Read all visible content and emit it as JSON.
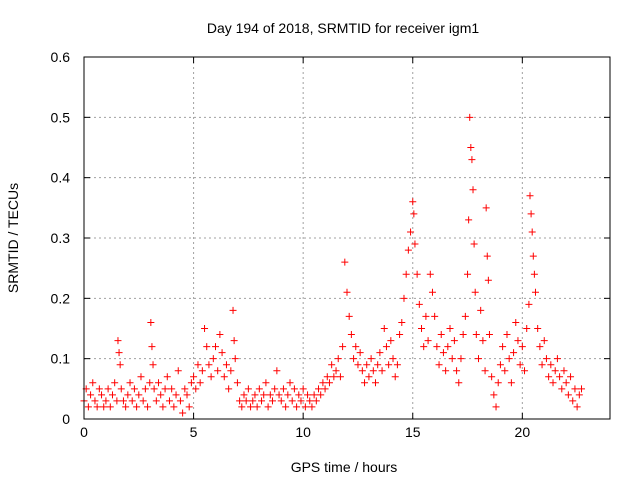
{
  "chart_data": {
    "type": "scatter",
    "title": "Day 194 of 2018, SRMTID for receiver igm1",
    "xlabel": "GPS time / hours",
    "ylabel": "SRMTID / TECUs",
    "xlim": [
      0,
      24
    ],
    "ylim": [
      0,
      0.6
    ],
    "xticks": [
      0,
      5,
      10,
      15,
      20
    ],
    "xtick_labels": [
      "0",
      "5",
      "10",
      "15",
      "20"
    ],
    "yticks": [
      0,
      0.1,
      0.2,
      0.3,
      0.4,
      0.5,
      0.6
    ],
    "ytick_labels": [
      "0",
      "0.1",
      "0.2",
      "0.3",
      "0.4",
      "0.5",
      "0.6"
    ],
    "grid": true,
    "marker": "+",
    "series": [
      {
        "name": "igm1",
        "color": "#ff0000",
        "points": [
          [
            0.0,
            0.03
          ],
          [
            0.1,
            0.05
          ],
          [
            0.2,
            0.02
          ],
          [
            0.3,
            0.04
          ],
          [
            0.4,
            0.06
          ],
          [
            0.5,
            0.03
          ],
          [
            0.6,
            0.02
          ],
          [
            0.7,
            0.05
          ],
          [
            0.8,
            0.04
          ],
          [
            0.9,
            0.02
          ],
          [
            1.0,
            0.03
          ],
          [
            1.1,
            0.05
          ],
          [
            1.2,
            0.02
          ],
          [
            1.3,
            0.04
          ],
          [
            1.4,
            0.06
          ],
          [
            1.5,
            0.03
          ],
          [
            1.55,
            0.13
          ],
          [
            1.6,
            0.11
          ],
          [
            1.65,
            0.09
          ],
          [
            1.7,
            0.05
          ],
          [
            1.8,
            0.03
          ],
          [
            1.9,
            0.02
          ],
          [
            2.0,
            0.04
          ],
          [
            2.1,
            0.06
          ],
          [
            2.2,
            0.03
          ],
          [
            2.3,
            0.05
          ],
          [
            2.4,
            0.02
          ],
          [
            2.5,
            0.04
          ],
          [
            2.6,
            0.07
          ],
          [
            2.7,
            0.03
          ],
          [
            2.8,
            0.05
          ],
          [
            2.9,
            0.02
          ],
          [
            3.0,
            0.06
          ],
          [
            3.05,
            0.16
          ],
          [
            3.1,
            0.12
          ],
          [
            3.15,
            0.09
          ],
          [
            3.2,
            0.05
          ],
          [
            3.3,
            0.03
          ],
          [
            3.4,
            0.06
          ],
          [
            3.5,
            0.04
          ],
          [
            3.6,
            0.02
          ],
          [
            3.7,
            0.05
          ],
          [
            3.8,
            0.07
          ],
          [
            3.9,
            0.03
          ],
          [
            4.0,
            0.05
          ],
          [
            4.1,
            0.02
          ],
          [
            4.2,
            0.04
          ],
          [
            4.3,
            0.08
          ],
          [
            4.4,
            0.03
          ],
          [
            4.5,
            0.01
          ],
          [
            4.6,
            0.05
          ],
          [
            4.7,
            0.04
          ],
          [
            4.8,
            0.02
          ],
          [
            4.9,
            0.06
          ],
          [
            5.0,
            0.07
          ],
          [
            5.1,
            0.05
          ],
          [
            5.2,
            0.09
          ],
          [
            5.3,
            0.06
          ],
          [
            5.4,
            0.08
          ],
          [
            5.5,
            0.15
          ],
          [
            5.6,
            0.12
          ],
          [
            5.7,
            0.09
          ],
          [
            5.8,
            0.07
          ],
          [
            5.9,
            0.1
          ],
          [
            6.0,
            0.12
          ],
          [
            6.1,
            0.08
          ],
          [
            6.2,
            0.14
          ],
          [
            6.3,
            0.11
          ],
          [
            6.4,
            0.07
          ],
          [
            6.5,
            0.09
          ],
          [
            6.6,
            0.05
          ],
          [
            6.7,
            0.08
          ],
          [
            6.8,
            0.18
          ],
          [
            6.85,
            0.13
          ],
          [
            6.9,
            0.1
          ],
          [
            7.0,
            0.06
          ],
          [
            7.1,
            0.03
          ],
          [
            7.2,
            0.02
          ],
          [
            7.3,
            0.04
          ],
          [
            7.4,
            0.03
          ],
          [
            7.5,
            0.05
          ],
          [
            7.6,
            0.02
          ],
          [
            7.7,
            0.03
          ],
          [
            7.8,
            0.04
          ],
          [
            7.9,
            0.02
          ],
          [
            8.0,
            0.05
          ],
          [
            8.1,
            0.03
          ],
          [
            8.2,
            0.04
          ],
          [
            8.3,
            0.06
          ],
          [
            8.4,
            0.02
          ],
          [
            8.5,
            0.04
          ],
          [
            8.6,
            0.03
          ],
          [
            8.7,
            0.05
          ],
          [
            8.8,
            0.08
          ],
          [
            8.9,
            0.04
          ],
          [
            9.0,
            0.03
          ],
          [
            9.1,
            0.05
          ],
          [
            9.2,
            0.02
          ],
          [
            9.3,
            0.04
          ],
          [
            9.4,
            0.06
          ],
          [
            9.5,
            0.03
          ],
          [
            9.6,
            0.05
          ],
          [
            9.7,
            0.02
          ],
          [
            9.8,
            0.04
          ],
          [
            9.9,
            0.03
          ],
          [
            10.0,
            0.05
          ],
          [
            10.1,
            0.02
          ],
          [
            10.2,
            0.04
          ],
          [
            10.3,
            0.03
          ],
          [
            10.4,
            0.02
          ],
          [
            10.5,
            0.04
          ],
          [
            10.6,
            0.03
          ],
          [
            10.7,
            0.05
          ],
          [
            10.8,
            0.04
          ],
          [
            10.9,
            0.06
          ],
          [
            11.0,
            0.05
          ],
          [
            11.1,
            0.07
          ],
          [
            11.2,
            0.06
          ],
          [
            11.3,
            0.09
          ],
          [
            11.4,
            0.07
          ],
          [
            11.5,
            0.08
          ],
          [
            11.6,
            0.1
          ],
          [
            11.7,
            0.07
          ],
          [
            11.8,
            0.12
          ],
          [
            11.9,
            0.26
          ],
          [
            12.0,
            0.21
          ],
          [
            12.1,
            0.17
          ],
          [
            12.2,
            0.14
          ],
          [
            12.3,
            0.1
          ],
          [
            12.4,
            0.12
          ],
          [
            12.5,
            0.09
          ],
          [
            12.6,
            0.11
          ],
          [
            12.7,
            0.08
          ],
          [
            12.8,
            0.06
          ],
          [
            12.9,
            0.09
          ],
          [
            13.0,
            0.07
          ],
          [
            13.1,
            0.1
          ],
          [
            13.2,
            0.08
          ],
          [
            13.3,
            0.06
          ],
          [
            13.4,
            0.09
          ],
          [
            13.5,
            0.11
          ],
          [
            13.6,
            0.08
          ],
          [
            13.7,
            0.15
          ],
          [
            13.8,
            0.12
          ],
          [
            13.9,
            0.09
          ],
          [
            14.0,
            0.13
          ],
          [
            14.1,
            0.1
          ],
          [
            14.2,
            0.07
          ],
          [
            14.3,
            0.09
          ],
          [
            14.4,
            0.14
          ],
          [
            14.5,
            0.16
          ],
          [
            14.6,
            0.2
          ],
          [
            14.7,
            0.24
          ],
          [
            14.8,
            0.28
          ],
          [
            14.9,
            0.31
          ],
          [
            15.0,
            0.36
          ],
          [
            15.05,
            0.34
          ],
          [
            15.1,
            0.29
          ],
          [
            15.2,
            0.24
          ],
          [
            15.3,
            0.19
          ],
          [
            15.4,
            0.15
          ],
          [
            15.5,
            0.12
          ],
          [
            15.6,
            0.17
          ],
          [
            15.7,
            0.13
          ],
          [
            15.8,
            0.24
          ],
          [
            15.9,
            0.21
          ],
          [
            16.0,
            0.17
          ],
          [
            16.1,
            0.12
          ],
          [
            16.2,
            0.09
          ],
          [
            16.3,
            0.14
          ],
          [
            16.4,
            0.11
          ],
          [
            16.5,
            0.08
          ],
          [
            16.6,
            0.12
          ],
          [
            16.7,
            0.15
          ],
          [
            16.8,
            0.1
          ],
          [
            16.9,
            0.13
          ],
          [
            17.0,
            0.08
          ],
          [
            17.1,
            0.06
          ],
          [
            17.2,
            0.1
          ],
          [
            17.3,
            0.14
          ],
          [
            17.4,
            0.17
          ],
          [
            17.5,
            0.24
          ],
          [
            17.55,
            0.33
          ],
          [
            17.6,
            0.5
          ],
          [
            17.65,
            0.45
          ],
          [
            17.7,
            0.43
          ],
          [
            17.75,
            0.38
          ],
          [
            17.8,
            0.29
          ],
          [
            17.85,
            0.21
          ],
          [
            17.9,
            0.14
          ],
          [
            18.0,
            0.1
          ],
          [
            18.1,
            0.18
          ],
          [
            18.2,
            0.13
          ],
          [
            18.3,
            0.08
          ],
          [
            18.35,
            0.35
          ],
          [
            18.4,
            0.27
          ],
          [
            18.45,
            0.23
          ],
          [
            18.5,
            0.14
          ],
          [
            18.6,
            0.07
          ],
          [
            18.7,
            0.04
          ],
          [
            18.8,
            0.02
          ],
          [
            18.9,
            0.06
          ],
          [
            19.0,
            0.09
          ],
          [
            19.1,
            0.12
          ],
          [
            19.2,
            0.08
          ],
          [
            19.3,
            0.14
          ],
          [
            19.4,
            0.1
          ],
          [
            19.5,
            0.06
          ],
          [
            19.6,
            0.11
          ],
          [
            19.7,
            0.16
          ],
          [
            19.8,
            0.13
          ],
          [
            19.9,
            0.09
          ],
          [
            20.0,
            0.12
          ],
          [
            20.1,
            0.08
          ],
          [
            20.2,
            0.15
          ],
          [
            20.3,
            0.19
          ],
          [
            20.35,
            0.37
          ],
          [
            20.4,
            0.34
          ],
          [
            20.45,
            0.31
          ],
          [
            20.5,
            0.27
          ],
          [
            20.55,
            0.24
          ],
          [
            20.6,
            0.21
          ],
          [
            20.7,
            0.15
          ],
          [
            20.8,
            0.12
          ],
          [
            20.9,
            0.09
          ],
          [
            21.0,
            0.13
          ],
          [
            21.1,
            0.1
          ],
          [
            21.2,
            0.07
          ],
          [
            21.3,
            0.09
          ],
          [
            21.4,
            0.06
          ],
          [
            21.5,
            0.08
          ],
          [
            21.6,
            0.1
          ],
          [
            21.7,
            0.07
          ],
          [
            21.8,
            0.05
          ],
          [
            21.9,
            0.08
          ],
          [
            22.0,
            0.06
          ],
          [
            22.1,
            0.04
          ],
          [
            22.2,
            0.07
          ],
          [
            22.3,
            0.03
          ],
          [
            22.4,
            0.05
          ],
          [
            22.5,
            0.02
          ],
          [
            22.6,
            0.04
          ],
          [
            22.7,
            0.05
          ]
        ]
      }
    ]
  }
}
